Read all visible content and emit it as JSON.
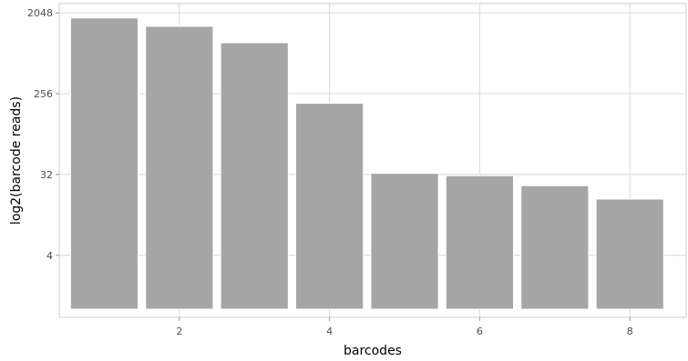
{
  "chart_data": {
    "type": "bar",
    "xlabel": "barcodes",
    "ylabel": "log2(barcode reads)",
    "y_scale": "log2",
    "x": [
      1,
      2,
      3,
      4,
      5,
      6,
      7,
      8
    ],
    "values": [
      1800,
      1450,
      950,
      200,
      33,
      31,
      24,
      17
    ],
    "xlim": [
      0.4,
      8.75
    ],
    "ylim": [
      0.81,
      2600
    ],
    "bar_baseline": 1,
    "x_ticks": [
      2,
      4,
      6,
      8
    ],
    "x_tick_labels": [
      "2",
      "4",
      "6",
      "8"
    ],
    "y_ticks": [
      4,
      32,
      256,
      2048
    ],
    "y_tick_labels": [
      "4",
      "32",
      "256",
      "2048"
    ],
    "grid": true,
    "legend": "none",
    "bar_color": "#a6a6a6",
    "bar_edge_color": "#ffffff",
    "grid_color": "#dedede",
    "panel_border_color": "#cfcfcf"
  }
}
